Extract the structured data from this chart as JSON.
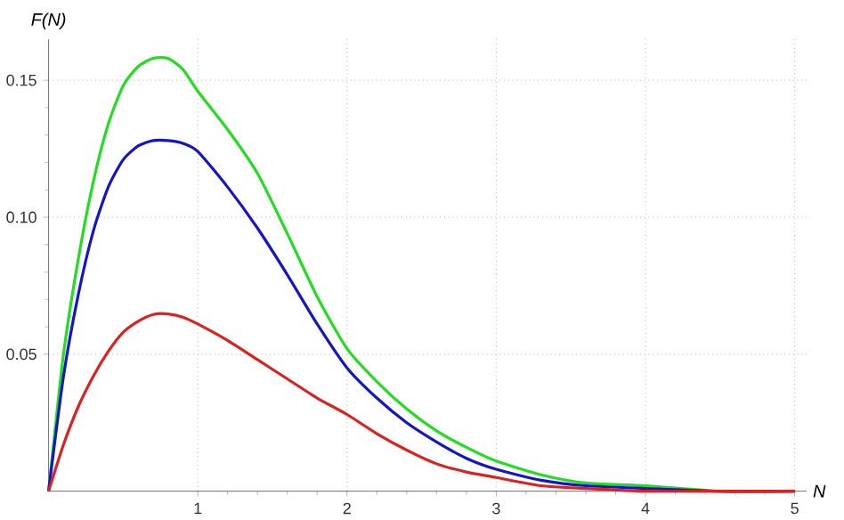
{
  "chart_data": {
    "type": "line",
    "xlabel": "N",
    "ylabel": "F(N)",
    "xlim": [
      0,
      5.08
    ],
    "ylim": [
      0,
      0.165
    ],
    "xticks": [
      1,
      2,
      3,
      4,
      5
    ],
    "yticks": [
      0.05,
      {
        "value": 0.1,
        "label": "0.10"
      },
      0.15
    ],
    "grid": true,
    "x": [
      0,
      0.1,
      0.2,
      0.3,
      0.4,
      0.5,
      0.6,
      0.7,
      0.8,
      0.9,
      1.0,
      1.2,
      1.4,
      1.6,
      1.8,
      2.0,
      2.2,
      2.4,
      2.6,
      2.8,
      3.0,
      3.3,
      3.6,
      4.0,
      4.5,
      5.0
    ],
    "series": [
      {
        "color": "#22dd22",
        "values": [
          0,
          0.05,
          0.085,
          0.113,
          0.134,
          0.148,
          0.155,
          0.158,
          0.158,
          0.154,
          0.146,
          0.132,
          0.116,
          0.094,
          0.071,
          0.052,
          0.04,
          0.03,
          0.022,
          0.016,
          0.011,
          0.006,
          0.003,
          0.002,
          0,
          0
        ]
      },
      {
        "color": "#1414cc",
        "values": [
          0,
          0.042,
          0.072,
          0.095,
          0.111,
          0.121,
          0.126,
          0.128,
          0.128,
          0.127,
          0.124,
          0.111,
          0.096,
          0.079,
          0.061,
          0.045,
          0.034,
          0.025,
          0.018,
          0.012,
          0.008,
          0.004,
          0.002,
          0.001,
          0,
          0
        ]
      },
      {
        "color": "#dd2020",
        "values": [
          0,
          0.017,
          0.031,
          0.042,
          0.051,
          0.058,
          0.062,
          0.0645,
          0.0647,
          0.0635,
          0.061,
          0.055,
          0.048,
          0.041,
          0.034,
          0.028,
          0.021,
          0.015,
          0.01,
          0.007,
          0.005,
          0.002,
          0.001,
          0,
          0,
          0
        ]
      }
    ]
  }
}
